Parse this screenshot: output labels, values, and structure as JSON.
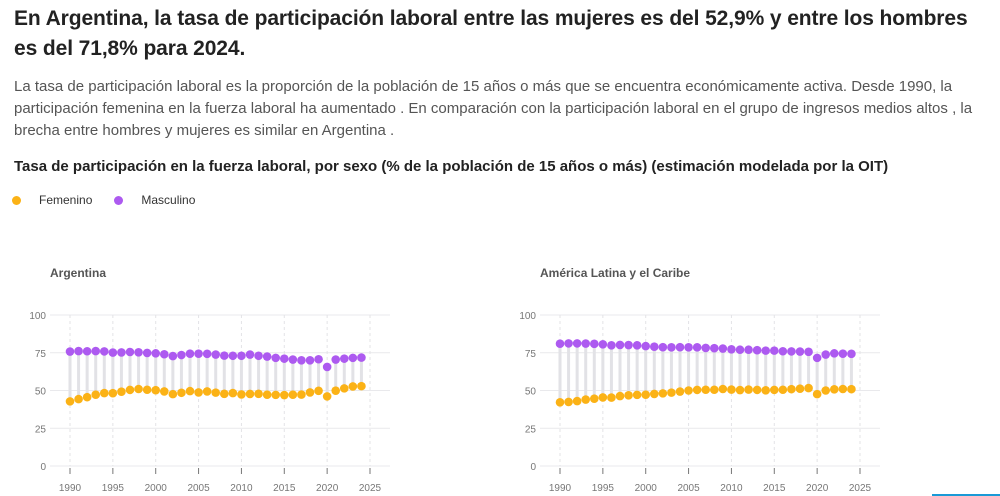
{
  "headline": "En Argentina, la tasa de participación laboral entre las mujeres es del 52,9% y entre los hombres es del 71,8% para 2024.",
  "description": "La tasa de participación laboral es la proporción de la población de 15 años o más que se encuentra económicamente activa. Desde 1990, la participación femenina en la fuerza laboral ha aumentado . En comparación con la participación laboral en el grupo de ingresos medios altos , la brecha entre hombres y mujeres es similar en Argentina .",
  "chart_title": "Tasa de participación en la fuerza laboral, por sexo (% de la población de 15 años o más) (estimación modelada por la OIT)",
  "legend": [
    {
      "label": "Femenino",
      "color": "#fbb216"
    },
    {
      "label": "Masculino",
      "color": "#ad5af0"
    }
  ],
  "chart_data": [
    {
      "type": "scatter",
      "subtype": "dumbbell",
      "title": "Argentina",
      "xlabel": "",
      "ylabel": "",
      "x_ticks": [
        1990,
        1995,
        2000,
        2005,
        2010,
        2015,
        2020,
        2025
      ],
      "y_ticks": [
        0,
        25,
        50,
        75,
        100
      ],
      "xlim": [
        1990,
        2025
      ],
      "ylim": [
        0,
        100
      ],
      "grid": true,
      "x": [
        1990,
        1991,
        1992,
        1993,
        1994,
        1995,
        1996,
        1997,
        1998,
        1999,
        2000,
        2001,
        2002,
        2003,
        2004,
        2005,
        2006,
        2007,
        2008,
        2009,
        2010,
        2011,
        2012,
        2013,
        2014,
        2015,
        2016,
        2017,
        2018,
        2019,
        2020,
        2021,
        2022,
        2023,
        2024
      ],
      "series": [
        {
          "name": "Femenino",
          "color": "#fbb216",
          "values": [
            42.8,
            44.3,
            45.6,
            47.2,
            48.3,
            48.2,
            49.2,
            50.4,
            51.0,
            50.5,
            50.2,
            49.4,
            47.6,
            48.5,
            49.6,
            48.7,
            49.4,
            48.6,
            47.8,
            48.3,
            47.4,
            47.7,
            47.8,
            47.2,
            47.1,
            47.0,
            47.2,
            47.3,
            48.7,
            49.8,
            46.1,
            49.9,
            51.4,
            52.7,
            52.9
          ]
        },
        {
          "name": "Masculino",
          "color": "#ad5af0",
          "values": [
            75.8,
            76.1,
            76.0,
            76.1,
            75.9,
            75.1,
            75.2,
            75.5,
            75.3,
            74.9,
            74.6,
            74.0,
            72.8,
            73.5,
            74.4,
            74.4,
            74.3,
            73.8,
            73.1,
            73.0,
            73.0,
            73.8,
            73.0,
            72.5,
            71.6,
            71.1,
            70.5,
            70.0,
            70.0,
            70.7,
            65.6,
            70.5,
            71.1,
            71.6,
            71.8
          ]
        }
      ]
    },
    {
      "type": "scatter",
      "subtype": "dumbbell",
      "title": "América Latina y el Caribe",
      "xlabel": "",
      "ylabel": "",
      "x_ticks": [
        1990,
        1995,
        2000,
        2005,
        2010,
        2015,
        2020,
        2025
      ],
      "y_ticks": [
        0,
        25,
        50,
        75,
        100
      ],
      "xlim": [
        1990,
        2025
      ],
      "ylim": [
        0,
        100
      ],
      "grid": true,
      "x": [
        1990,
        1991,
        1992,
        1993,
        1994,
        1995,
        1996,
        1997,
        1998,
        1999,
        2000,
        2001,
        2002,
        2003,
        2004,
        2005,
        2006,
        2007,
        2008,
        2009,
        2010,
        2011,
        2012,
        2013,
        2014,
        2015,
        2016,
        2017,
        2018,
        2019,
        2020,
        2021,
        2022,
        2023,
        2024
      ],
      "series": [
        {
          "name": "Femenino",
          "color": "#fbb216",
          "values": [
            42.2,
            42.4,
            43.0,
            44.0,
            44.6,
            45.4,
            45.3,
            46.3,
            46.8,
            47.1,
            47.2,
            47.7,
            48.1,
            48.6,
            49.3,
            50.0,
            50.4,
            50.5,
            50.5,
            51.0,
            50.6,
            50.3,
            50.6,
            50.4,
            50.1,
            50.4,
            50.5,
            50.9,
            51.2,
            51.6,
            47.6,
            50.0,
            50.8,
            51.0,
            50.9
          ]
        },
        {
          "name": "Masculino",
          "color": "#ad5af0",
          "values": [
            81.0,
            81.2,
            81.2,
            81.1,
            80.9,
            80.6,
            79.9,
            80.2,
            80.1,
            79.9,
            79.4,
            79.0,
            78.7,
            78.6,
            78.7,
            78.6,
            78.6,
            78.2,
            78.0,
            77.8,
            77.3,
            77.0,
            77.0,
            76.7,
            76.4,
            76.4,
            76.0,
            75.9,
            75.8,
            75.6,
            71.6,
            73.8,
            74.6,
            74.4,
            74.3
          ]
        }
      ]
    }
  ]
}
